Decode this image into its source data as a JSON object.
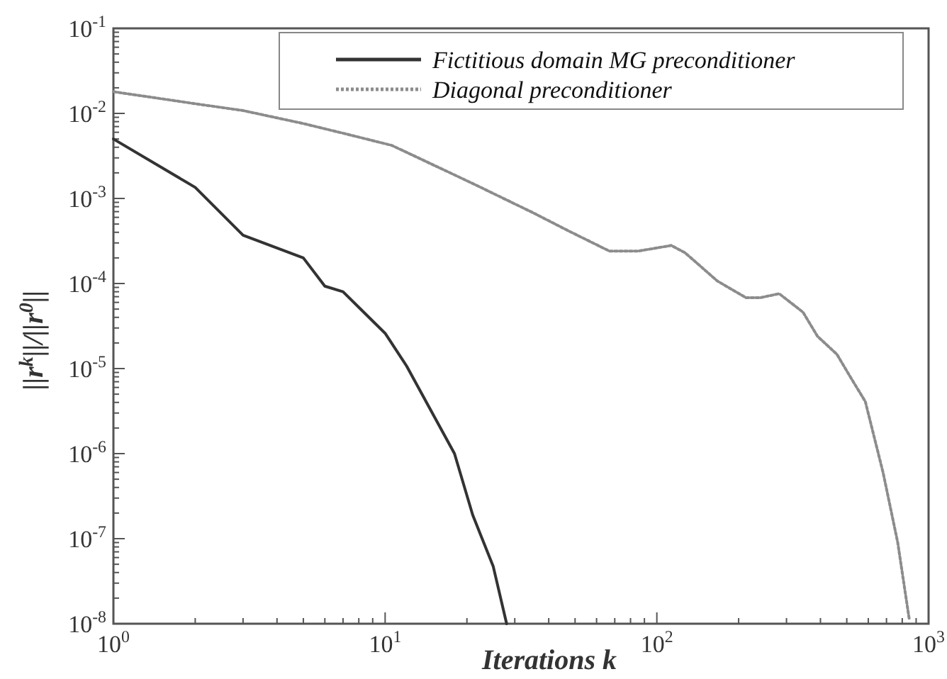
{
  "chart_data": {
    "type": "line",
    "xlabel": "Iterations k",
    "ylabel": "||r$^{k}$||/||r$^{0}$||",
    "log": "xy",
    "xlim": [
      1,
      1000
    ],
    "ylim": [
      1e-08,
      0.1
    ],
    "xticks": [
      {
        "value": 1,
        "label": "10$^{0}$"
      },
      {
        "value": 10,
        "label": "10$^{1}$"
      },
      {
        "value": 100,
        "label": "10$^{2}$"
      },
      {
        "value": 1000,
        "label": "10$^{3}$"
      }
    ],
    "yticks": [
      {
        "value": 1e-08,
        "label": "10$^{-8}$"
      },
      {
        "value": 1e-07,
        "label": "10$^{-7}$"
      },
      {
        "value": 1e-06,
        "label": "10$^{-6}$"
      },
      {
        "value": 1e-05,
        "label": "10$^{-5}$"
      },
      {
        "value": 0.0001,
        "label": "10$^{-4}$"
      },
      {
        "value": 0.001,
        "label": "10$^{-3}$"
      },
      {
        "value": 0.01,
        "label": "10$^{-2}$"
      },
      {
        "value": 0.1,
        "label": "10$^{-1}$"
      }
    ],
    "grid": false,
    "legend": "top right",
    "marker": "none",
    "series": [
      {
        "name": "Fictitious domain MG preconditioner",
        "color": "#333333",
        "line_style": "solid",
        "x": [
          1,
          2,
          3,
          5,
          6,
          7,
          10,
          12,
          18,
          21,
          25,
          28
        ],
        "values": [
          0.005,
          0.00135,
          0.00037,
          0.0002,
          9.3e-05,
          8e-05,
          2.6e-05,
          1.07e-05,
          1e-06,
          1.9e-07,
          4.7e-08,
          1e-08
        ]
      },
      {
        "name": "Diagonal preconditioner",
        "color": "#8c8c8c",
        "line_style": "dotted",
        "x": [
          1,
          2,
          3,
          5,
          7.4,
          10.6,
          21,
          35,
          47,
          67,
          85,
          113,
          127,
          167,
          213,
          240,
          282,
          345,
          390,
          460,
          520,
          585,
          680,
          770,
          850
        ],
        "values": [
          0.018,
          0.013,
          0.0108,
          0.0076,
          0.0056,
          0.0042,
          0.0015,
          0.00068,
          0.00042,
          0.00024,
          0.00024,
          0.00028,
          0.00023,
          0.000107,
          6.8e-05,
          6.8e-05,
          7.6e-05,
          4.6e-05,
          2.4e-05,
          1.47e-05,
          7.6e-06,
          4.1e-06,
          6e-07,
          9e-08,
          1.1e-08
        ]
      }
    ]
  }
}
